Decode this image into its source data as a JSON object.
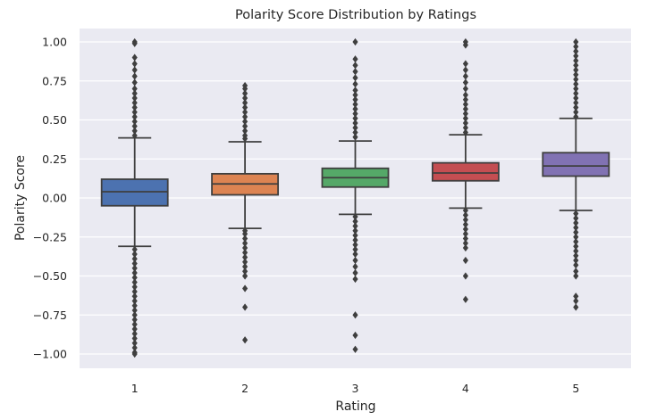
{
  "chart_data": {
    "type": "box",
    "title": "Polarity Score Distribution by Ratings",
    "xlabel": "Rating",
    "ylabel": "Polarity Score",
    "categories": [
      "1",
      "2",
      "3",
      "4",
      "5"
    ],
    "ylim": [
      -1.1,
      1.1
    ],
    "yticks": [
      1.0,
      0.75,
      0.5,
      0.25,
      0.0,
      -0.25,
      -0.5,
      -0.75,
      -1.0
    ],
    "ytick_labels": [
      "1.00",
      "0.75",
      "0.50",
      "0.25",
      "0.00",
      "−0.25",
      "−0.50",
      "−0.75",
      "−1.00"
    ],
    "grid": true,
    "background": "#eaeaf2",
    "colors": [
      "#4c72b0",
      "#dd8452",
      "#55a868",
      "#c44e52",
      "#8172b3"
    ],
    "boxes": [
      {
        "category": "1",
        "whislo": -0.31,
        "q1": -0.05,
        "med": 0.04,
        "q3": 0.12,
        "whishi": 0.385,
        "fliers": [
          1.0,
          0.99,
          0.9,
          0.86,
          0.82,
          0.78,
          0.74,
          0.7,
          0.67,
          0.64,
          0.61,
          0.58,
          0.55,
          0.52,
          0.49,
          0.46,
          0.43,
          0.4,
          -0.33,
          -0.36,
          -0.39,
          -0.42,
          -0.45,
          -0.48,
          -0.51,
          -0.54,
          -0.57,
          -0.6,
          -0.63,
          -0.66,
          -0.69,
          -0.72,
          -0.75,
          -0.78,
          -0.81,
          -0.84,
          -0.87,
          -0.9,
          -0.93,
          -0.96,
          -0.99,
          -1.0
        ]
      },
      {
        "category": "2",
        "whislo": -0.195,
        "q1": 0.02,
        "med": 0.09,
        "q3": 0.155,
        "whishi": 0.36,
        "fliers": [
          0.72,
          0.7,
          0.67,
          0.64,
          0.61,
          0.58,
          0.55,
          0.52,
          0.49,
          0.46,
          0.43,
          0.4,
          0.38,
          -0.21,
          -0.23,
          -0.26,
          -0.29,
          -0.32,
          -0.35,
          -0.38,
          -0.41,
          -0.44,
          -0.47,
          -0.5,
          -0.58,
          -0.7,
          -0.91
        ]
      },
      {
        "category": "3",
        "whislo": -0.105,
        "q1": 0.07,
        "med": 0.13,
        "q3": 0.19,
        "whishi": 0.365,
        "fliers": [
          1.0,
          0.89,
          0.85,
          0.81,
          0.77,
          0.73,
          0.69,
          0.66,
          0.63,
          0.6,
          0.57,
          0.54,
          0.51,
          0.48,
          0.45,
          0.42,
          0.39,
          -0.12,
          -0.15,
          -0.18,
          -0.21,
          -0.24,
          -0.27,
          -0.3,
          -0.33,
          -0.36,
          -0.4,
          -0.44,
          -0.48,
          -0.52,
          -0.75,
          -0.88,
          -0.97
        ]
      },
      {
        "category": "4",
        "whislo": -0.065,
        "q1": 0.11,
        "med": 0.16,
        "q3": 0.225,
        "whishi": 0.405,
        "fliers": [
          1.0,
          0.98,
          0.86,
          0.82,
          0.78,
          0.74,
          0.7,
          0.66,
          0.63,
          0.6,
          0.57,
          0.54,
          0.51,
          0.48,
          0.45,
          0.42,
          -0.08,
          -0.11,
          -0.14,
          -0.17,
          -0.2,
          -0.23,
          -0.26,
          -0.29,
          -0.32,
          -0.4,
          -0.5,
          -0.65
        ]
      },
      {
        "category": "5",
        "whislo": -0.08,
        "q1": 0.14,
        "med": 0.205,
        "q3": 0.29,
        "whishi": 0.51,
        "fliers": [
          1.0,
          0.97,
          0.94,
          0.91,
          0.88,
          0.85,
          0.82,
          0.79,
          0.76,
          0.73,
          0.7,
          0.67,
          0.64,
          0.61,
          0.58,
          0.55,
          0.52,
          -0.1,
          -0.13,
          -0.16,
          -0.19,
          -0.22,
          -0.25,
          -0.28,
          -0.31,
          -0.34,
          -0.37,
          -0.4,
          -0.43,
          -0.47,
          -0.5,
          -0.63,
          -0.66,
          -0.7
        ]
      }
    ]
  }
}
